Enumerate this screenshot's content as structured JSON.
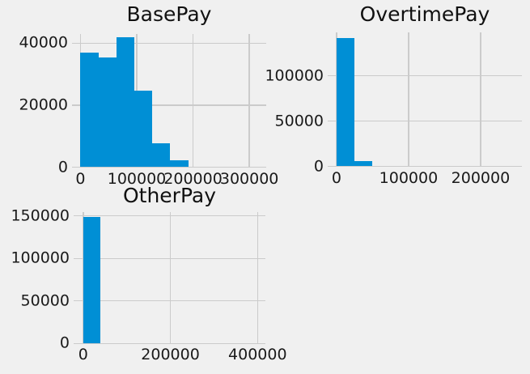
{
  "figure": {
    "background_color": "#f0f0f0",
    "grid_color": "#cbcbcb",
    "bar_color": "#008fd5",
    "text_color": "#1a1a1a"
  },
  "chart_data": [
    {
      "type": "bar",
      "subtype": "histogram",
      "title": "BasePay",
      "bin_start": -166,
      "bin_width": 31944,
      "values": [
        37000,
        35500,
        42000,
        24800,
        7600,
        2300,
        0,
        0,
        0,
        0
      ],
      "xtick_values": [
        0,
        100000,
        200000,
        300000
      ],
      "xtick_labels": [
        "0",
        "100000",
        "200000",
        "300000"
      ],
      "ytick_values": [
        0,
        20000,
        40000
      ],
      "ytick_labels": [
        "0",
        "20000",
        "40000"
      ],
      "xlim": [
        -15000,
        330000
      ],
      "ylim": [
        0,
        43000
      ],
      "grid": true,
      "legend": false
    },
    {
      "type": "bar",
      "subtype": "histogram",
      "title": "OvertimePay",
      "bin_start": 0,
      "bin_width": 24513,
      "values": [
        141300,
        5500,
        0,
        0,
        0,
        0,
        0,
        0,
        0,
        0
      ],
      "xtick_values": [
        0,
        100000,
        200000
      ],
      "xtick_labels": [
        "0",
        "100000",
        "200000"
      ],
      "ytick_values": [
        0,
        50000,
        100000
      ],
      "ytick_labels": [
        "0",
        "50000",
        "100000"
      ],
      "xlim": [
        -12260,
        257390
      ],
      "ylim": [
        0,
        147800
      ],
      "grid": true,
      "legend": false
    },
    {
      "type": "bar",
      "subtype": "histogram",
      "title": "OtherPay",
      "bin_start": -618,
      "bin_width": 40018,
      "values": [
        148500,
        0,
        0,
        0,
        0,
        0,
        0,
        0,
        0,
        0
      ],
      "xtick_values": [
        0,
        200000,
        400000
      ],
      "xtick_labels": [
        "0",
        "200000",
        "400000"
      ],
      "ytick_values": [
        0,
        50000,
        100000,
        150000
      ],
      "ytick_labels": [
        "0",
        "50000",
        "100000",
        "150000"
      ],
      "xlim": [
        -22000,
        418000
      ],
      "ylim": [
        0,
        155000
      ],
      "grid": true,
      "legend": false
    }
  ]
}
